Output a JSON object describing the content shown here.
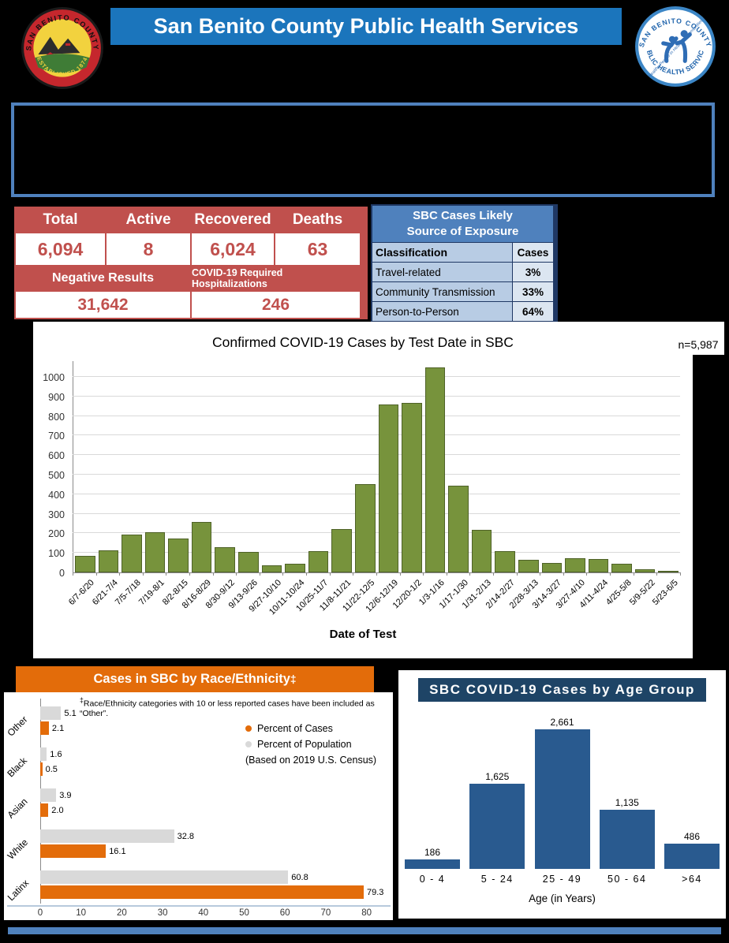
{
  "header": {
    "title": "San Benito County Public Health Services",
    "county_seal": {
      "top": "SAN BENITO COUNTY",
      "bottom": "ESTABLISHED 1874"
    },
    "phs_logo": {
      "top": "SAN BENITO COUNTY",
      "bottom": "PUBLIC HEALTH SERVICES",
      "tagline": "Healthy People in Healthy Communities"
    }
  },
  "summary_table": {
    "headers": [
      "Total",
      "Active",
      "Recovered",
      "Deaths"
    ],
    "values": [
      "6,094",
      "8",
      "6,024",
      "63"
    ],
    "negative_results_label": "Negative Results",
    "negative_results_value": "31,642",
    "hospitalizations_label": "COVID-19 Required Hospitalizations",
    "hospitalizations_value": "246"
  },
  "exposure_table": {
    "title_line1": "SBC Cases Likely",
    "title_line2": "Source of Exposure",
    "classification_header": "Classification",
    "cases_header": "Cases",
    "rows": [
      {
        "classification": "Travel-related",
        "cases": "3%"
      },
      {
        "classification": "Community Transmission",
        "cases": "33%"
      },
      {
        "classification": "Person-to-Person",
        "cases": "64%"
      }
    ]
  },
  "chart_data": [
    {
      "id": "cases_by_test_date",
      "type": "bar",
      "title": "Confirmed COVID-19 Cases by Test Date in SBC",
      "annotation": "n=5,987",
      "xlabel": "Date of Test",
      "ylim": [
        0,
        1000
      ],
      "yticks": [
        0,
        100,
        200,
        300,
        400,
        500,
        600,
        700,
        800,
        900,
        1000
      ],
      "grid": true,
      "categories": [
        "6/7-6/20",
        "6/21-7/4",
        "7/5-7/18",
        "7/19-8/1",
        "8/2-8/15",
        "8/16-8/29",
        "8/30-9/12",
        "9/13-9/26",
        "9/27-10/10",
        "10/11-10/24",
        "10/25-11/7",
        "11/8-11/21",
        "11/22-12/5",
        "12/6-12/19",
        "12/20-1/2",
        "1/3-1/16",
        "1/17-1/30",
        "1/31-2/13",
        "2/14-2/27",
        "2/28-3/13",
        "3/14-3/27",
        "3/27-4/10",
        "4/11-4/24",
        "4/25-5/8",
        "5/9-5/22",
        "5/23-6/5"
      ],
      "values": [
        85,
        115,
        193,
        207,
        175,
        258,
        128,
        104,
        38,
        46,
        110,
        222,
        453,
        858,
        866,
        1048,
        444,
        219,
        108,
        64,
        48,
        72,
        70,
        46,
        18,
        8
      ]
    },
    {
      "id": "cases_by_race_ethnicity",
      "type": "bar-horizontal-grouped",
      "title": "Cases in SBC by Race/Ethnicity",
      "title_sup": "‡",
      "footnote_sup": "‡",
      "footnote": "Race/Ethnicity categories with 10 or less reported cases have been included as “Other”.",
      "categories_top_to_bottom": [
        "Other",
        "Black",
        "Asian",
        "White",
        "Latinx"
      ],
      "series": [
        {
          "name": "Percent of Cases",
          "values": [
            2.1,
            0.5,
            2.0,
            16.1,
            79.3
          ],
          "labels": [
            "2.1",
            "0.5",
            "2.0",
            "16.1",
            "79.3"
          ]
        },
        {
          "name": "Percent of Population",
          "name_note": "(Based on 2019 U.S. Census)",
          "values": [
            5.1,
            1.6,
            3.9,
            32.8,
            60.8
          ],
          "labels": [
            "5.1",
            "1.6",
            "3.9",
            "32.8",
            "60.8"
          ]
        }
      ],
      "xlim": [
        0,
        80
      ],
      "xticks": [
        0,
        10,
        20,
        30,
        40,
        50,
        60,
        70,
        80
      ],
      "legend_position": "right"
    },
    {
      "id": "cases_by_age_group",
      "type": "bar",
      "title": "SBC COVID-19 Cases by Age Group",
      "xlabel": "Age (in Years)",
      "categories": [
        "0 - 4",
        "5 - 24",
        "25 - 49",
        "50 - 64",
        ">64"
      ],
      "values": [
        186,
        1625,
        2661,
        1135,
        486
      ],
      "labels": [
        "186",
        "1,625",
        "2,661",
        "1,135",
        "486"
      ]
    }
  ],
  "colors": {
    "header_blue": "#1b75bc",
    "table_red": "#c0504d",
    "exp_header": "#4f81bd",
    "exp_row": "#b8cce4",
    "exp_row_light": "#dce6f1",
    "green": "#77933c",
    "green_border": "#4f6228",
    "gridline": "#d9d9d9",
    "orange": "#e36c0a",
    "gray_bar": "#d9d9d9",
    "navy": "#1e4466",
    "age_bar": "#295a8f",
    "divider": "#4f81bd"
  }
}
